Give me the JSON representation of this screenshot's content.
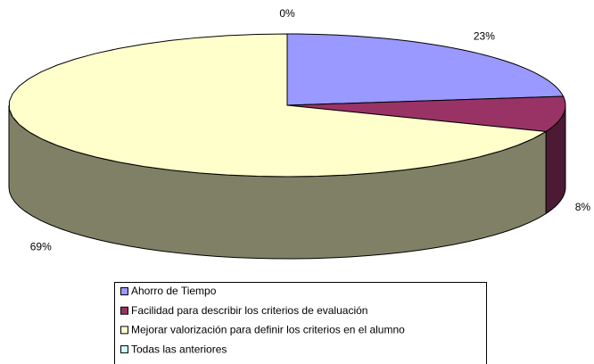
{
  "chart_data": {
    "type": "pie",
    "categories": [
      "Ahorro de Tiempo",
      "Facilidad para describir los criterios de evaluación",
      "Mejorar valorización para definir los criterios en el alumno",
      "Todas las anteriores"
    ],
    "values": [
      23,
      8,
      69,
      0
    ],
    "value_labels": [
      "23%",
      "8%",
      "69%",
      "0%"
    ],
    "colors": [
      "#9999ff",
      "#993366",
      "#ffffcc",
      "#ccffff"
    ],
    "legend": "bottom"
  }
}
